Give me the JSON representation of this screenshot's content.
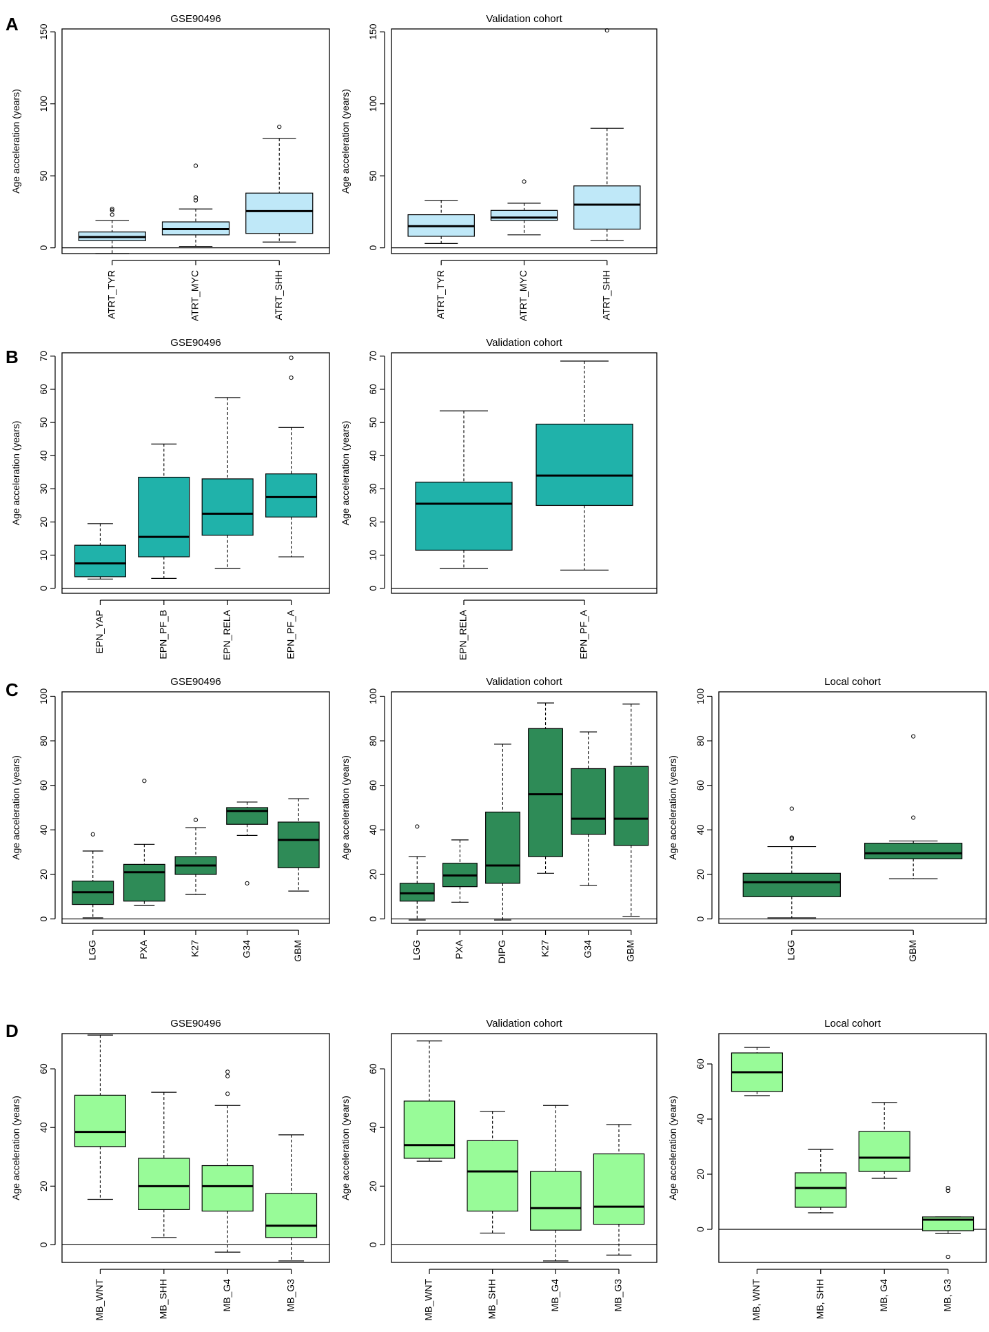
{
  "panel_letters": [
    "A",
    "B",
    "C",
    "D"
  ],
  "ylabel": "Age acceleration (years)",
  "colors": {
    "A": "#bfe8f8",
    "B": "#20b2aa",
    "C": "#2e8b57",
    "D": "#98fb98"
  },
  "chart_data": [
    {
      "type": "box",
      "panel": "A",
      "title": "GSE90496",
      "ylabel": "Age acceleration (years)",
      "ylim": [
        -4,
        152
      ],
      "yticks": [
        0,
        50,
        100,
        150
      ],
      "fill": "#bfe8f8",
      "categories": [
        "ATRT_TYR",
        "ATRT_MYC",
        "ATRT_SHH"
      ],
      "boxes": [
        {
          "min": -4,
          "q1": 5,
          "median": 7.5,
          "q3": 11,
          "max": 19,
          "outliers": [
            23,
            26,
            27
          ]
        },
        {
          "min": 1,
          "q1": 9,
          "median": 13,
          "q3": 18,
          "max": 27,
          "outliers": [
            33,
            35,
            57
          ]
        },
        {
          "min": 4,
          "q1": 10,
          "median": 25.5,
          "q3": 38,
          "max": 76,
          "outliers": [
            84
          ]
        }
      ]
    },
    {
      "type": "box",
      "panel": "A",
      "title": "Validation cohort",
      "ylabel": "Age acceleration (years)",
      "ylim": [
        -4,
        152
      ],
      "yticks": [
        0,
        50,
        100,
        150
      ],
      "fill": "#bfe8f8",
      "categories": [
        "ATRT_TYR",
        "ATRT_MYC",
        "ATRT_SHH"
      ],
      "boxes": [
        {
          "min": 3,
          "q1": 8,
          "median": 15,
          "q3": 23,
          "max": 33,
          "outliers": []
        },
        {
          "min": 9,
          "q1": 19,
          "median": 21,
          "q3": 26,
          "max": 31,
          "outliers": [
            46
          ]
        },
        {
          "min": 5,
          "q1": 13,
          "median": 30,
          "q3": 43,
          "max": 83,
          "outliers": [
            151
          ]
        }
      ]
    },
    {
      "type": "box",
      "panel": "B",
      "title": "GSE90496",
      "ylabel": "Age acceleration (years)",
      "ylim": [
        -1.5,
        71
      ],
      "yticks": [
        0,
        10,
        20,
        30,
        40,
        50,
        60,
        70
      ],
      "fill": "#20b2aa",
      "categories": [
        "EPN_YAP",
        "EPN_PF_B",
        "EPN_RELA",
        "EPN_PF_A"
      ],
      "boxes": [
        {
          "min": 2.8,
          "q1": 3.5,
          "median": 7.5,
          "q3": 13,
          "max": 19.5,
          "outliers": []
        },
        {
          "min": 3,
          "q1": 9.5,
          "median": 15.5,
          "q3": 33.5,
          "max": 43.5,
          "outliers": []
        },
        {
          "min": 6,
          "q1": 16,
          "median": 22.5,
          "q3": 33,
          "max": 57.5,
          "outliers": []
        },
        {
          "min": 9.5,
          "q1": 21.5,
          "median": 27.5,
          "q3": 34.5,
          "max": 48.5,
          "outliers": [
            63.5,
            69.5
          ]
        }
      ]
    },
    {
      "type": "box",
      "panel": "B",
      "title": "Validation cohort",
      "ylabel": "Age acceleration (years)",
      "ylim": [
        -1.5,
        71
      ],
      "yticks": [
        0,
        10,
        20,
        30,
        40,
        50,
        60,
        70
      ],
      "fill": "#20b2aa",
      "categories": [
        "EPN_RELA",
        "EPN_PF_A"
      ],
      "boxes": [
        {
          "min": 6,
          "q1": 11.5,
          "median": 25.5,
          "q3": 32,
          "max": 53.5,
          "outliers": []
        },
        {
          "min": 5.5,
          "q1": 25,
          "median": 34,
          "q3": 49.5,
          "max": 68.5,
          "outliers": []
        }
      ]
    },
    {
      "type": "box",
      "panel": "C",
      "title": "GSE90496",
      "ylabel": "Age acceleration (years)",
      "ylim": [
        -2,
        102
      ],
      "yticks": [
        0,
        20,
        40,
        60,
        80,
        100
      ],
      "fill": "#2e8b57",
      "categories": [
        "LGG",
        "PXA",
        "K27",
        "G34",
        "GBM"
      ],
      "boxes": [
        {
          "min": 0.5,
          "q1": 6.5,
          "median": 12,
          "q3": 17,
          "max": 30.5,
          "outliers": [
            38
          ]
        },
        {
          "min": 6,
          "q1": 8,
          "median": 21,
          "q3": 24.5,
          "max": 33.5,
          "outliers": [
            62
          ]
        },
        {
          "min": 11,
          "q1": 20,
          "median": 24,
          "q3": 28,
          "max": 41,
          "outliers": [
            44.5
          ]
        },
        {
          "min": 37.5,
          "q1": 42.5,
          "median": 48.5,
          "q3": 50,
          "max": 52.5,
          "outliers": [
            16
          ]
        },
        {
          "min": 12.5,
          "q1": 23,
          "median": 35.5,
          "q3": 43.5,
          "max": 54,
          "outliers": []
        }
      ]
    },
    {
      "type": "box",
      "panel": "C",
      "title": "Validation cohort",
      "ylabel": "Age acceleration (years)",
      "ylim": [
        -2,
        102
      ],
      "yticks": [
        0,
        20,
        40,
        60,
        80,
        100
      ],
      "fill": "#2e8b57",
      "categories": [
        "LGG",
        "PXA",
        "DIPG",
        "K27",
        "G34",
        "GBM"
      ],
      "boxes": [
        {
          "min": -0.5,
          "q1": 8,
          "median": 11.5,
          "q3": 16,
          "max": 28,
          "outliers": [
            41.5
          ]
        },
        {
          "min": 7.5,
          "q1": 14.5,
          "median": 19.5,
          "q3": 25,
          "max": 35.5,
          "outliers": []
        },
        {
          "min": -0.5,
          "q1": 16,
          "median": 24,
          "q3": 48,
          "max": 78.5,
          "outliers": []
        },
        {
          "min": 20.5,
          "q1": 28,
          "median": 56,
          "q3": 85.5,
          "max": 97,
          "outliers": []
        },
        {
          "min": 15,
          "q1": 38,
          "median": 45,
          "q3": 67.5,
          "max": 84,
          "outliers": []
        },
        {
          "min": 1,
          "q1": 33,
          "median": 45,
          "q3": 68.5,
          "max": 96.5,
          "outliers": []
        }
      ]
    },
    {
      "type": "box",
      "panel": "C",
      "title": "Local cohort",
      "ylabel": "Age acceleration (years)",
      "ylim": [
        -2,
        102
      ],
      "yticks": [
        0,
        20,
        40,
        60,
        80,
        100
      ],
      "fill": "#2e8b57",
      "categories": [
        "LGG",
        "GBM"
      ],
      "boxes": [
        {
          "min": 0.5,
          "q1": 10,
          "median": 16.5,
          "q3": 20.5,
          "max": 32.5,
          "outliers": [
            36,
            36.5,
            49.5
          ]
        },
        {
          "min": 18,
          "q1": 27,
          "median": 29.5,
          "q3": 34,
          "max": 35,
          "outliers": [
            45.5,
            82
          ]
        }
      ]
    },
    {
      "type": "box",
      "panel": "D",
      "title": "GSE90496",
      "ylabel": "Age acceleration (years)",
      "ylim": [
        -6,
        72
      ],
      "yticks": [
        0,
        20,
        40,
        60
      ],
      "fill": "#98fb98",
      "categories": [
        "MB_WNT",
        "MB_SHH",
        "MB_G4",
        "MB_G3"
      ],
      "boxes": [
        {
          "min": 15.5,
          "q1": 33.5,
          "median": 38.5,
          "q3": 51,
          "max": 71.5,
          "outliers": []
        },
        {
          "min": 2.5,
          "q1": 12,
          "median": 20,
          "q3": 29.5,
          "max": 52,
          "outliers": []
        },
        {
          "min": -2.5,
          "q1": 11.5,
          "median": 20,
          "q3": 27,
          "max": 47.5,
          "outliers": [
            51.5,
            57.5,
            59
          ]
        },
        {
          "min": -5.5,
          "q1": 2.5,
          "median": 6.5,
          "q3": 17.5,
          "max": 37.5,
          "outliers": []
        }
      ]
    },
    {
      "type": "box",
      "panel": "D",
      "title": "Validation cohort",
      "ylabel": "Age acceleration (years)",
      "ylim": [
        -6,
        72
      ],
      "yticks": [
        0,
        20,
        40,
        60
      ],
      "fill": "#98fb98",
      "categories": [
        "MB_WNT",
        "MB_SHH",
        "MB_G4",
        "MB_G3"
      ],
      "boxes": [
        {
          "min": 28.5,
          "q1": 29.5,
          "median": 34,
          "q3": 49,
          "max": 69.5,
          "outliers": []
        },
        {
          "min": 4,
          "q1": 11.5,
          "median": 25,
          "q3": 35.5,
          "max": 45.5,
          "outliers": []
        },
        {
          "min": -5.5,
          "q1": 5,
          "median": 12.5,
          "q3": 25,
          "max": 47.5,
          "outliers": []
        },
        {
          "min": -3.5,
          "q1": 7,
          "median": 13,
          "q3": 31,
          "max": 41,
          "outliers": []
        }
      ]
    },
    {
      "type": "box",
      "panel": "D",
      "title": "Local cohort",
      "ylabel": "Age acceleration (years)",
      "ylim": [
        -12,
        71
      ],
      "yticks": [
        0,
        20,
        40,
        60
      ],
      "fill": "#98fb98",
      "categories": [
        "MB, WNT",
        "MB, SHH",
        "MB, G4",
        "MB, G3"
      ],
      "boxes": [
        {
          "min": 48.5,
          "q1": 50,
          "median": 57,
          "q3": 64,
          "max": 66,
          "outliers": []
        },
        {
          "min": 6,
          "q1": 8,
          "median": 15,
          "q3": 20.5,
          "max": 29,
          "outliers": []
        },
        {
          "min": 18.5,
          "q1": 21,
          "median": 26,
          "q3": 35.5,
          "max": 46,
          "outliers": []
        },
        {
          "min": -1.5,
          "q1": -0.5,
          "median": 3.5,
          "q3": 4.5,
          "max": 4.5,
          "outliers": [
            14,
            15,
            -10
          ]
        }
      ]
    }
  ]
}
